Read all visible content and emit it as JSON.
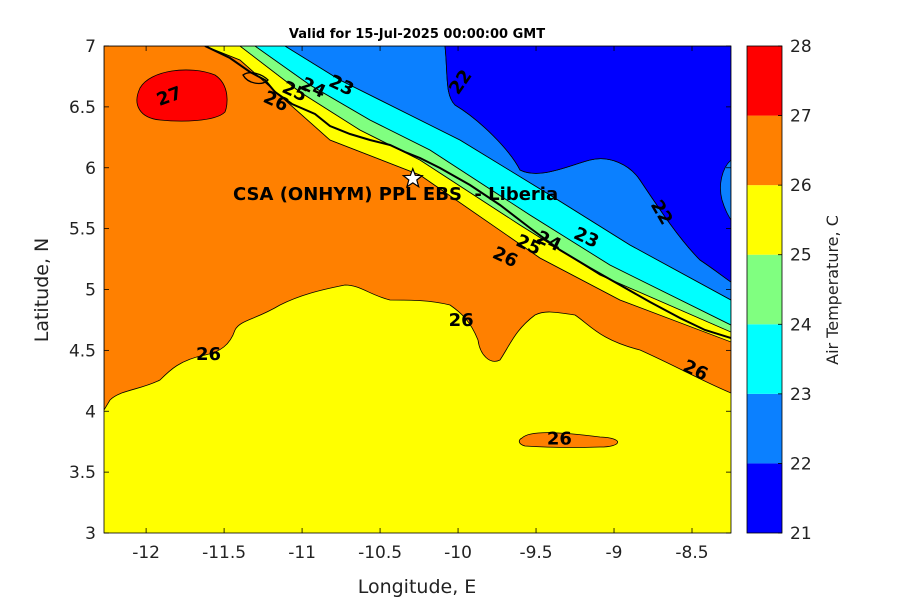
{
  "chart_data": {
    "type": "contour map",
    "title": "Valid for 15-Jul-2025 00:00:00 GMT",
    "xlabel": "Longitude, E",
    "ylabel": "Latitude, N",
    "xlim": [
      -12.27,
      -8.25
    ],
    "ylim": [
      3,
      7
    ],
    "xticks": [
      -12,
      -11.5,
      -11,
      -10.5,
      -10,
      -9.5,
      -9,
      -8.5
    ],
    "xtick_labels": [
      "-12",
      "-11.5",
      "-11",
      "-10.5",
      "-10",
      "-9.5",
      "-9",
      "-8.5"
    ],
    "yticks": [
      3,
      3.5,
      4,
      4.5,
      5,
      5.5,
      6,
      6.5,
      7
    ],
    "ytick_labels": [
      "3",
      "3.5",
      "4",
      "4.5",
      "5",
      "5.5",
      "6",
      "6.5",
      "7"
    ],
    "grid": false,
    "colorbar": {
      "label": "Air Temperature, C",
      "levels": [
        21,
        22,
        23,
        24,
        25,
        26,
        27,
        28
      ],
      "tick_labels": [
        "21",
        "22",
        "23",
        "24",
        "25",
        "26",
        "27",
        "28"
      ],
      "colors": [
        "#0000ff",
        "#0b80ff",
        "#00ffff",
        "#80ff80",
        "#ffff00",
        "#ff8000",
        "#ff0000",
        "#800000"
      ]
    },
    "site": {
      "name": "CSA (ONHYM) PPL EBS  - Liberia",
      "lon": -10.29,
      "lat": 5.91,
      "marker": "star"
    },
    "contour_labels": [
      {
        "text": "27",
        "lon": -11.85,
        "lat": 6.58,
        "rot": -20
      },
      {
        "text": "26",
        "lon": -11.17,
        "lat": 6.54,
        "rot": 25
      },
      {
        "text": "25",
        "lon": -11.05,
        "lat": 6.62,
        "rot": 25
      },
      {
        "text": "24",
        "lon": -10.93,
        "lat": 6.65,
        "rot": 25
      },
      {
        "text": "23",
        "lon": -10.75,
        "lat": 6.67,
        "rot": 25
      },
      {
        "text": "22",
        "lon": -9.98,
        "lat": 6.7,
        "rot": -55
      },
      {
        "text": "22",
        "lon": -8.7,
        "lat": 5.63,
        "rot": 60
      },
      {
        "text": "23",
        "lon": -9.18,
        "lat": 5.42,
        "rot": 25
      },
      {
        "text": "24",
        "lon": -9.42,
        "lat": 5.39,
        "rot": 25
      },
      {
        "text": "25",
        "lon": -9.55,
        "lat": 5.36,
        "rot": 25
      },
      {
        "text": "26",
        "lon": -9.7,
        "lat": 5.26,
        "rot": 25
      },
      {
        "text": "26",
        "lon": -9.98,
        "lat": 4.74,
        "rot": 0
      },
      {
        "text": "26",
        "lon": -11.6,
        "lat": 4.46,
        "rot": 0
      },
      {
        "text": "26",
        "lon": -8.48,
        "lat": 4.33,
        "rot": 25
      },
      {
        "text": "26",
        "lon": -9.35,
        "lat": 3.77,
        "rot": 0
      }
    ]
  }
}
